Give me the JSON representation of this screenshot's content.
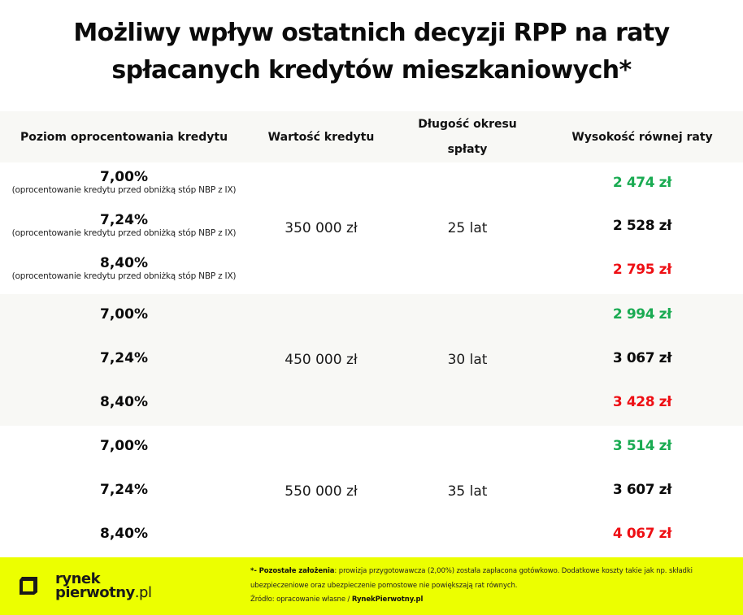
{
  "title": {
    "line1": "Możliwy wpływ ostatnich decyzji RPP na raty",
    "line2": "spłacanych kredytów mieszkaniowych*"
  },
  "table": {
    "headers": {
      "rate": "Poziom oprocentowania kredytu",
      "value": "Wartość kredytu",
      "length_line1": "Długość okresu",
      "length_line2": "spłaty",
      "installment": "Wysokość równej raty"
    },
    "rate_note": "(oprocentowanie kredytu przed obniżką stóp NBP z IX)",
    "groups": [
      {
        "value": "350 000 zł",
        "length": "25 lat",
        "rows": [
          {
            "rate": "7,00%",
            "installment": "2 474 zł",
            "status": "low"
          },
          {
            "rate": "7,24%",
            "installment": "2 528 zł",
            "status": "mid"
          },
          {
            "rate": "8,40%",
            "installment": "2 795 zł",
            "status": "high"
          }
        ]
      },
      {
        "value": "450 000 zł",
        "length": "30 lat",
        "rows": [
          {
            "rate": "7,00%",
            "installment": "2 994 zł",
            "status": "low"
          },
          {
            "rate": "7,24%",
            "installment": "3 067 zł",
            "status": "mid"
          },
          {
            "rate": "8,40%",
            "installment": "3 428 zł",
            "status": "high"
          }
        ]
      },
      {
        "value": "550 000 zł",
        "length": "35 lat",
        "rows": [
          {
            "rate": "7,00%",
            "installment": "3 514 zł",
            "status": "low"
          },
          {
            "rate": "7,24%",
            "installment": "3 607 zł",
            "status": "mid"
          },
          {
            "rate": "8,40%",
            "installment": "4 067 zł",
            "status": "high"
          }
        ]
      }
    ]
  },
  "colors": {
    "low": "#1aab52",
    "mid": "#0a0a0a",
    "high": "#ee0f14",
    "footer_bg": "#ecff00",
    "shaded_bg": "#f8f8f5"
  },
  "footer": {
    "logo_line1": "rynek",
    "logo_line2": "pierwotny",
    "logo_suffix": ".pl",
    "note_label": "*- Pozostałe założenia",
    "note_text1": ": prowizja przygotowawcza (2,00%) została zapłacona gotówkowo. Dodatkowe koszty takie jak np. składki",
    "note_text2": "ubezpieczeniowe oraz ubezpieczenie pomostowe nie powiększają rat równych.",
    "source_label": "Źródło: opracowanie własne / ",
    "source_brand": "RynekPierwotny.pl"
  }
}
